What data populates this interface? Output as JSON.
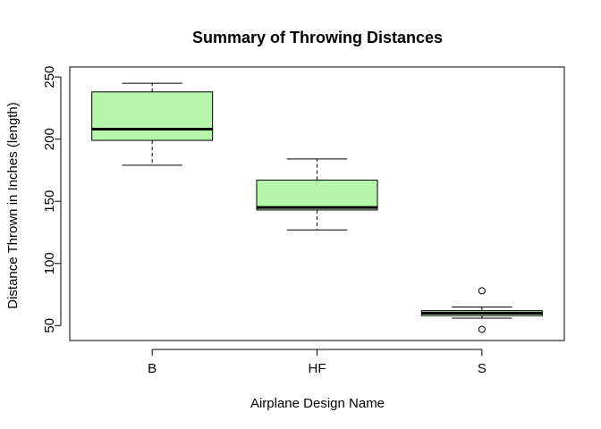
{
  "chart_data": {
    "type": "boxplot",
    "title": "Summary of Throwing Distances",
    "xlabel": "Airplane Design Name",
    "ylabel": "Distance Thrown in Inches (length)",
    "ylim": [
      38,
      258
    ],
    "yticks": [
      50,
      100,
      150,
      200,
      250
    ],
    "grid": false,
    "colors": {
      "box_fill": "#b6f7ac",
      "stroke": "#000000"
    },
    "categories": [
      "B",
      "HF",
      "S"
    ],
    "boxes": [
      {
        "category": "B",
        "whisker_low": 179,
        "q1": 199,
        "median": 208,
        "q3": 238,
        "whisker_high": 245,
        "outliers": []
      },
      {
        "category": "HF",
        "whisker_low": 127,
        "q1": 143,
        "median": 145,
        "q3": 167,
        "whisker_high": 184,
        "outliers": []
      },
      {
        "category": "S",
        "whisker_low": 56,
        "q1": 58,
        "median": 60,
        "q3": 62,
        "whisker_high": 65,
        "outliers": [
          78,
          47
        ]
      }
    ]
  }
}
